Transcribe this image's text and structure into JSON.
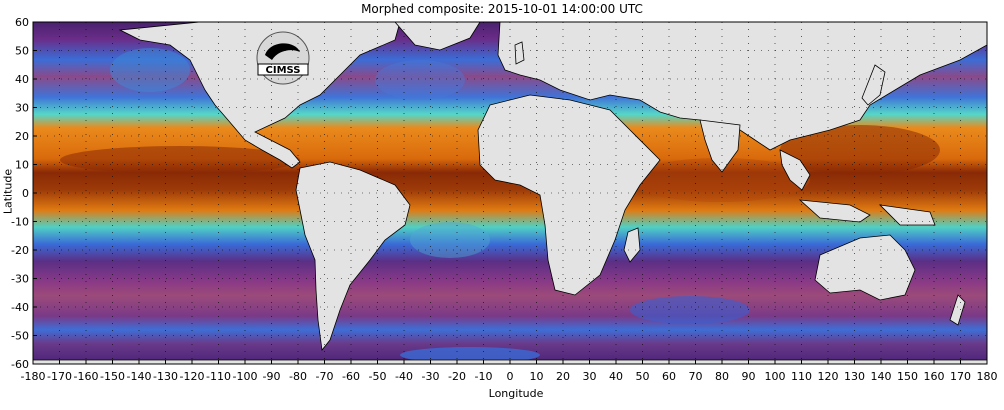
{
  "title": "Morphed composite: 2015-10-01 14:00:00 UTC",
  "xlabel": "Longitude",
  "ylabel": "Latitude",
  "logo_text": "CIMSS",
  "x_ticks": [
    "-180",
    "-170",
    "-160",
    "-150",
    "-140",
    "-130",
    "-120",
    "-110",
    "-100",
    "-90",
    "-80",
    "-70",
    "-60",
    "-50",
    "-40",
    "-30",
    "-20",
    "-10",
    "0",
    "10",
    "20",
    "30",
    "40",
    "50",
    "60",
    "70",
    "80",
    "90",
    "100",
    "110",
    "120",
    "130",
    "140",
    "150",
    "160",
    "170",
    "180"
  ],
  "y_ticks": [
    "60",
    "50",
    "40",
    "30",
    "20",
    "10",
    "0",
    "-10",
    "-20",
    "-30",
    "-40",
    "-50",
    "-60"
  ],
  "colors": {
    "land": "#e3e3e3",
    "dry": "#5a2a7a",
    "moist_low": "#3f6fd8",
    "moist_mid": "#52d8c8",
    "moist_high": "#e87a10",
    "very_moist": "#8a2a06"
  }
}
